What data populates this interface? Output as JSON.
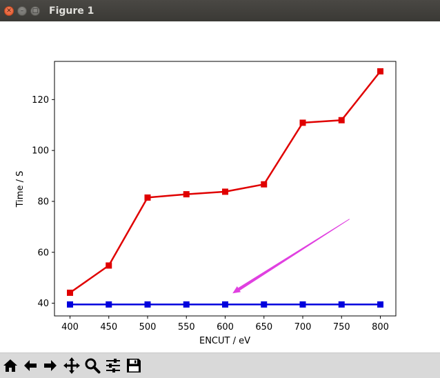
{
  "window": {
    "title": "Figure 1"
  },
  "chart_data": {
    "type": "line",
    "title": "",
    "xlabel": "ENCUT / eV",
    "ylabel": "Time / S",
    "x": [
      400,
      450,
      500,
      550,
      600,
      650,
      700,
      750,
      800
    ],
    "xlim": [
      380,
      820
    ],
    "ylim": [
      35,
      135
    ],
    "xticks": [
      "400",
      "450",
      "500",
      "550",
      "600",
      "650",
      "700",
      "750",
      "800"
    ],
    "yticks": [
      "40",
      "60",
      "80",
      "100",
      "120"
    ],
    "grid": false,
    "series": [
      {
        "color": "#e00000",
        "marker": "square",
        "values": [
          44.1,
          54.8,
          81.5,
          82.8,
          83.8,
          86.7,
          110.9,
          111.9,
          131.1
        ]
      },
      {
        "color": "#0000dd",
        "marker": "square",
        "values": [
          39.5,
          39.5,
          39.5,
          39.5,
          39.5,
          39.5,
          39.5,
          39.5,
          39.5
        ]
      }
    ],
    "annotation": {
      "type": "arrow",
      "color": "#e040e0",
      "from": [
        760,
        73
      ],
      "to": [
        610,
        44
      ]
    }
  },
  "toolbar": {
    "items": [
      {
        "name": "home-icon"
      },
      {
        "name": "back-icon"
      },
      {
        "name": "forward-icon"
      },
      {
        "name": "pan-icon"
      },
      {
        "name": "zoom-icon"
      },
      {
        "name": "subplots-icon"
      },
      {
        "name": "save-icon"
      }
    ]
  }
}
